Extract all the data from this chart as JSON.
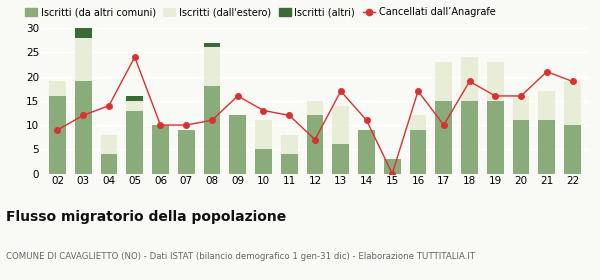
{
  "years": [
    "02",
    "03",
    "04",
    "05",
    "06",
    "07",
    "08",
    "09",
    "10",
    "11",
    "12",
    "13",
    "14",
    "15",
    "16",
    "17",
    "18",
    "19",
    "20",
    "21",
    "22"
  ],
  "iscritti_altri_comuni": [
    16,
    19,
    4,
    13,
    10,
    9,
    18,
    12,
    5,
    4,
    12,
    6,
    9,
    3,
    9,
    15,
    15,
    15,
    11,
    11,
    10
  ],
  "iscritti_estero": [
    3,
    9,
    4,
    2,
    0,
    0,
    8,
    0,
    6,
    4,
    3,
    8,
    0,
    0,
    3,
    8,
    9,
    8,
    5,
    6,
    9
  ],
  "iscritti_altri": [
    0,
    2,
    0,
    1,
    0,
    0,
    1,
    0,
    0,
    0,
    0,
    0,
    0,
    0,
    0,
    0,
    0,
    0,
    0,
    0,
    0
  ],
  "cancellati": [
    9,
    12,
    14,
    24,
    10,
    10,
    11,
    16,
    13,
    12,
    7,
    17,
    11,
    0,
    17,
    10,
    19,
    16,
    16,
    21,
    19
  ],
  "color_altri_comuni": "#8aab7a",
  "color_estero": "#e8edd8",
  "color_altri": "#3a6b35",
  "color_cancellati": "#d93030",
  "title": "Flusso migratorio della popolazione",
  "subtitle": "COMUNE DI CAVAGLIETTO (NO) - Dati ISTAT (bilancio demografico 1 gen-31 dic) - Elaborazione TUTTITALIA.IT",
  "ylim": [
    0,
    30
  ],
  "yticks": [
    0,
    5,
    10,
    15,
    20,
    25,
    30
  ],
  "bg_color": "#f9f9f6",
  "grid_color": "#ffffff",
  "legend_labels": [
    "Iscritti (da altri comuni)",
    "Iscritti (dall'estero)",
    "Iscritti (altri)",
    "Cancellati dall’Anagrafe"
  ],
  "title_color": "#111111",
  "subtitle_color": "#666666"
}
